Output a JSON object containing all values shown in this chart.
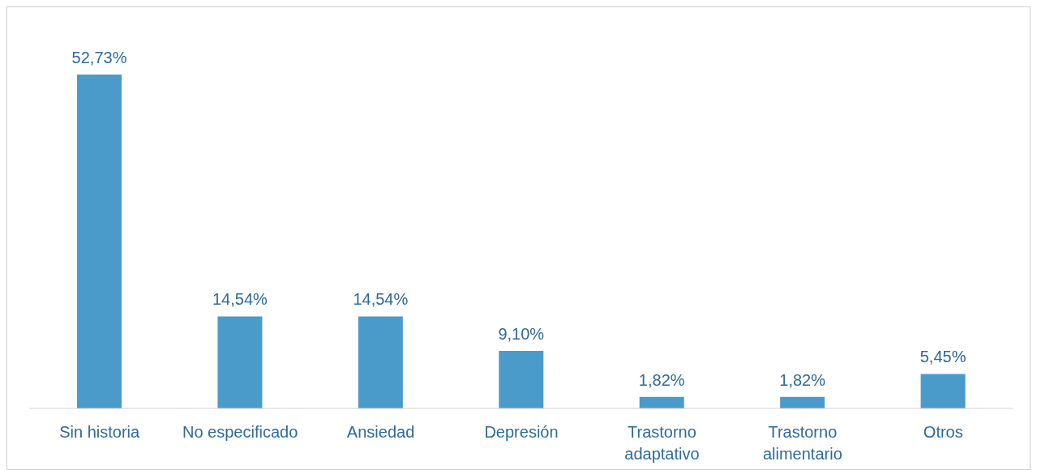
{
  "chart_data": {
    "type": "bar",
    "categories": [
      "Sin historia",
      "No especificado",
      "Ansiedad",
      "Depresión",
      "Trastorno adaptativo",
      "Trastorno alimentario",
      "Otros"
    ],
    "values": [
      52.73,
      14.54,
      14.54,
      9.1,
      1.82,
      1.82,
      5.45
    ],
    "value_labels": [
      "52,73%",
      "14,54%",
      "14,54%",
      "9,10%",
      "1,82%",
      "1,82%",
      "5,45%"
    ],
    "color": "#4a9bca",
    "grid": false,
    "legend": false
  }
}
